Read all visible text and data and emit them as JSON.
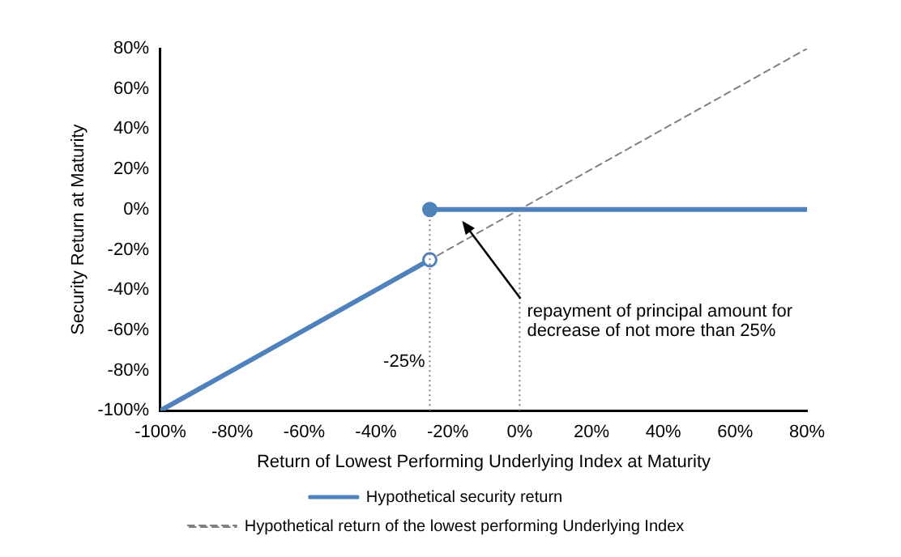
{
  "chart_data": {
    "type": "line",
    "xlabel": "Return of Lowest Performing Underlying Index at Maturity",
    "ylabel": "Security Return at Maturity",
    "xlim": [
      -100,
      80
    ],
    "ylim": [
      -100,
      80
    ],
    "xticks": [
      {
        "value": -100,
        "label": "-100%"
      },
      {
        "value": -80,
        "label": "-80%"
      },
      {
        "value": -60,
        "label": "-60%"
      },
      {
        "value": -40,
        "label": "-40%"
      },
      {
        "value": -20,
        "label": "-20%"
      },
      {
        "value": 0,
        "label": "0%"
      },
      {
        "value": 20,
        "label": "20%"
      },
      {
        "value": 40,
        "label": "40%"
      },
      {
        "value": 60,
        "label": "60%"
      },
      {
        "value": 80,
        "label": "80%"
      }
    ],
    "yticks": [
      {
        "value": -100,
        "label": "-100%"
      },
      {
        "value": -80,
        "label": "-80%"
      },
      {
        "value": -60,
        "label": "-60%"
      },
      {
        "value": -40,
        "label": "-40%"
      },
      {
        "value": -20,
        "label": "-20%"
      },
      {
        "value": 0,
        "label": "0%"
      },
      {
        "value": 20,
        "label": "20%"
      },
      {
        "value": 40,
        "label": "40%"
      },
      {
        "value": 60,
        "label": "60%"
      },
      {
        "value": 80,
        "label": "80%"
      }
    ],
    "series": [
      {
        "name": "Hypothetical security return",
        "color": "#4f81bd",
        "x": [
          -100,
          -25
        ],
        "values": [
          -100,
          -25
        ],
        "marker": "circle",
        "line_style": "solid"
      },
      {
        "color": "#4f81bd",
        "x": [
          -25,
          80
        ],
        "values": [
          0,
          0
        ],
        "marker": "circle",
        "line_style": "solid"
      },
      {
        "name": "Hypothetical return of the lowest performing Underlying Index",
        "color": "#808080",
        "x": [
          -100,
          80
        ],
        "values": [
          -100,
          80
        ],
        "marker": "none",
        "line_style": "dashed"
      }
    ],
    "ref_lines": [
      {
        "axis": "x",
        "value": -25,
        "label": "-25%",
        "color": "#808080",
        "line_style": "dotted"
      },
      {
        "axis": "x",
        "value": 0,
        "color": "#808080",
        "line_style": "dotted"
      }
    ],
    "annotations": [
      {
        "text": "repayment of principal amount for decrease of not more than 25%",
        "x": -16,
        "y": -4
      }
    ],
    "grid": false,
    "legend": "bottom"
  }
}
